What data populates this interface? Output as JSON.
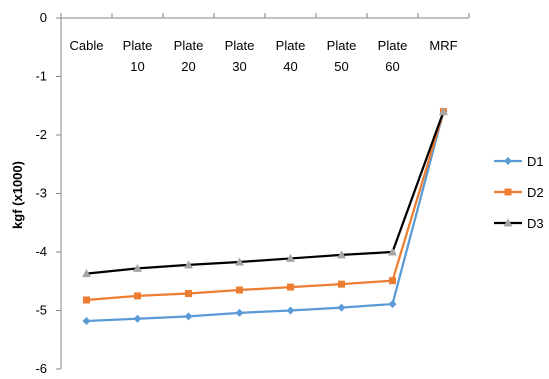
{
  "chart_data": {
    "type": "line",
    "categories": [
      [
        "Cable"
      ],
      [
        "Plate",
        "10"
      ],
      [
        "Plate",
        "20"
      ],
      [
        "Plate",
        "30"
      ],
      [
        "Plate",
        "40"
      ],
      [
        "Plate",
        "50"
      ],
      [
        "Plate",
        "60"
      ],
      [
        "MRF"
      ]
    ],
    "series": [
      {
        "name": "D1",
        "color": "#5B9BD5",
        "marker": "diamond",
        "values": [
          -5.18,
          -5.14,
          -5.1,
          -5.04,
          -5.0,
          -4.95,
          -4.89,
          -1.6
        ]
      },
      {
        "name": "D2",
        "color": "#ED7D31",
        "marker": "square",
        "values": [
          -4.82,
          -4.75,
          -4.71,
          -4.65,
          -4.6,
          -4.55,
          -4.49,
          -1.6
        ]
      },
      {
        "name": "D3",
        "color": "#000000",
        "marker": "triangle",
        "marker_color": "#A5A5A5",
        "values": [
          -4.37,
          -4.28,
          -4.22,
          -4.17,
          -4.11,
          -4.05,
          -4.0,
          -1.6
        ]
      }
    ],
    "title": "",
    "xlabel": "",
    "ylabel": "kgf (x1000)",
    "ylim": [
      -6,
      0
    ],
    "yticks": [
      "0",
      "-1",
      "-2",
      "-3",
      "-4",
      "-5",
      "-6"
    ],
    "grid": false,
    "legend_position": "right",
    "x_axis_position": "top"
  }
}
